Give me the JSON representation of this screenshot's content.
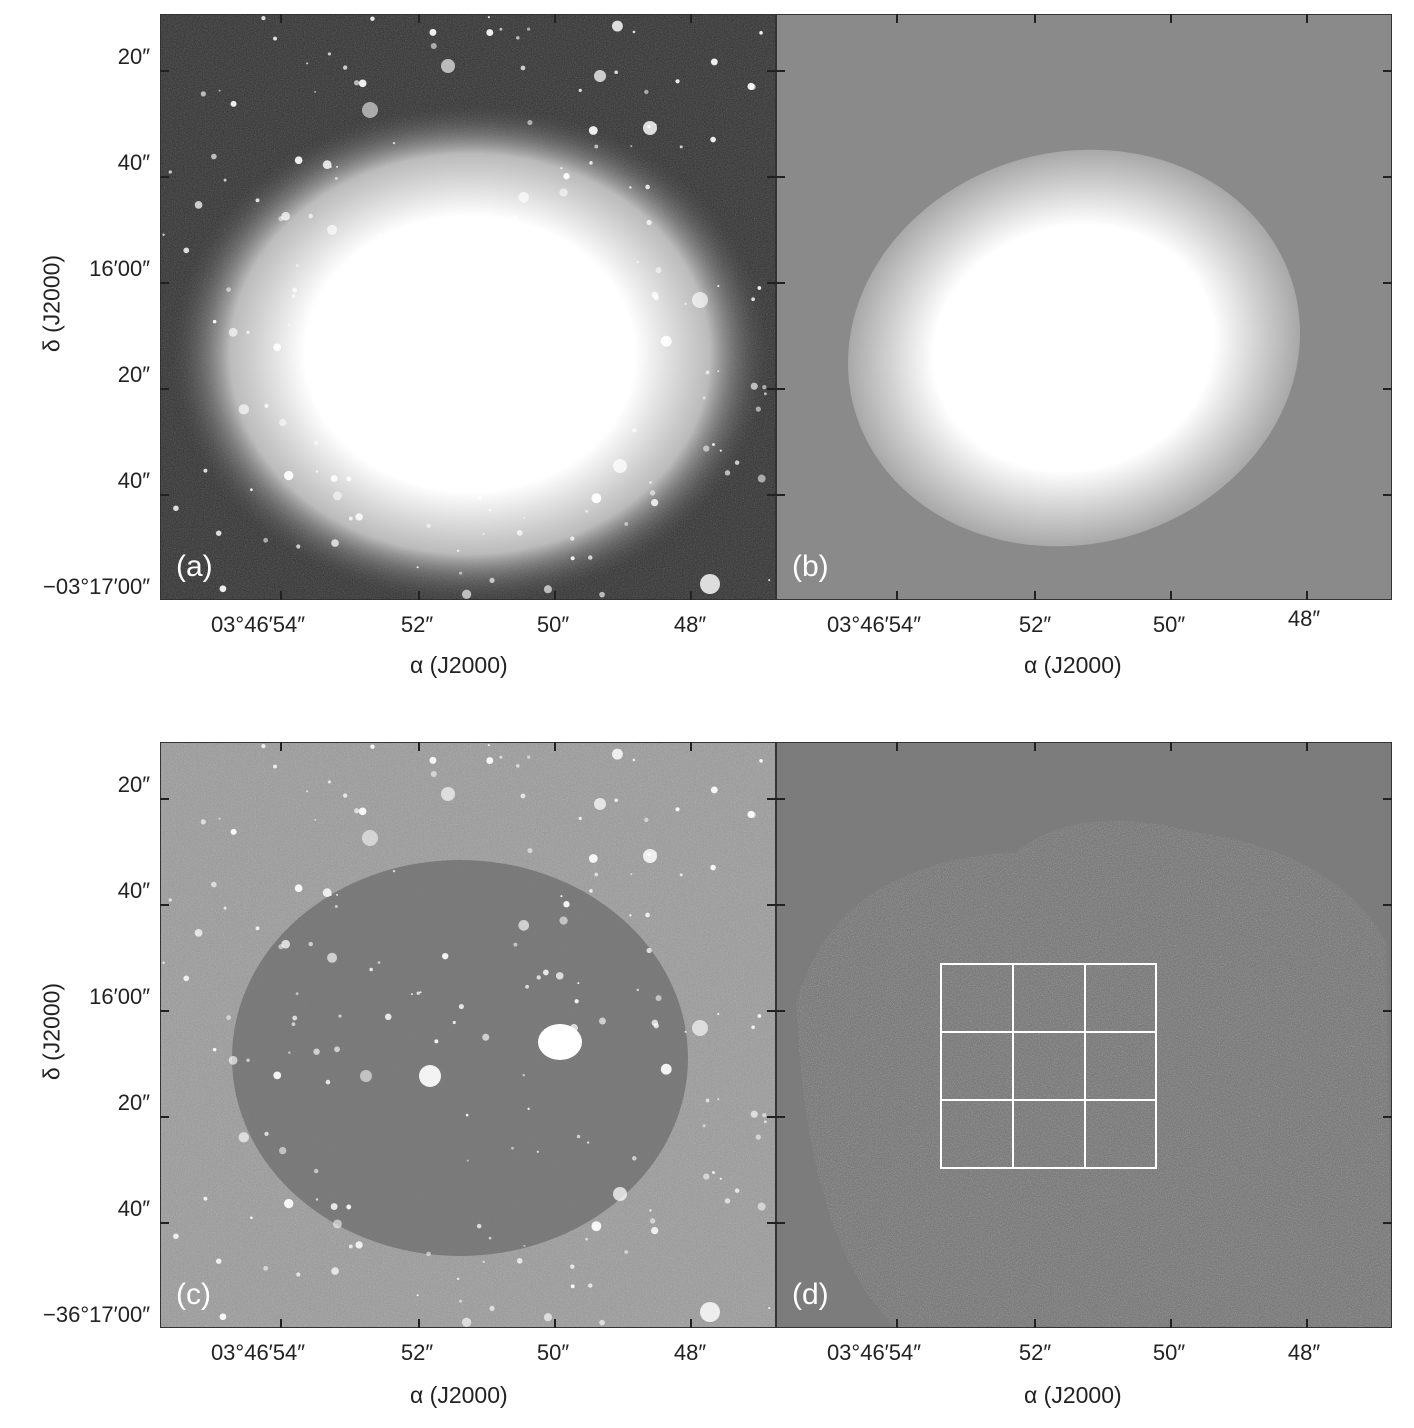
{
  "figure": {
    "panels": [
      {
        "id": "a",
        "label": "(a)"
      },
      {
        "id": "b",
        "label": "(b)"
      },
      {
        "id": "c",
        "label": "(c)"
      },
      {
        "id": "d",
        "label": "(d)"
      }
    ],
    "top_row": {
      "ytick_labels": [
        "20″",
        "40″",
        "16′00″",
        "20″",
        "40″",
        "−03°17′00″"
      ],
      "ylabel": "δ (J2000)"
    },
    "bottom_row": {
      "ytick_labels": [
        "20″",
        "40″",
        "16′00″",
        "20″",
        "40″",
        "−36°17′00″"
      ],
      "ylabel": "δ (J2000)"
    },
    "xtick_labels_left": [
      "03°46′54″",
      "52″",
      "50″",
      "48″"
    ],
    "xtick_labels_right": [
      "03°46′54″",
      "52″",
      "50″",
      "48″"
    ],
    "xlabel": "α (J2000)",
    "colors": {
      "frame": "#333333",
      "grid": "#ffffff"
    }
  }
}
